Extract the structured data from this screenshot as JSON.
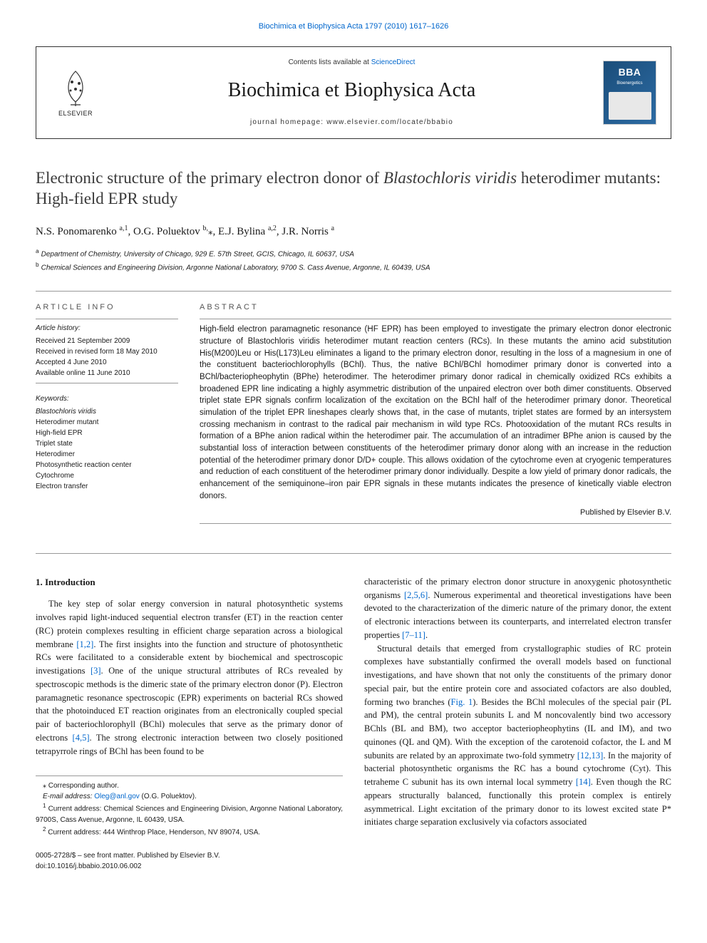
{
  "top_link": "Biochimica et Biophysica Acta 1797 (2010) 1617–1626",
  "header": {
    "elsevier_label": "ELSEVIER",
    "contents_prefix": "Contents lists available at ",
    "contents_link": "ScienceDirect",
    "journal_name": "Biochimica et Biophysica Acta",
    "homepage_label": "journal homepage: www.elsevier.com/locate/bbabio",
    "bba_badge": "BBA",
    "bba_sub": "Bioenergetics"
  },
  "title": {
    "line1": "Electronic structure of the primary electron donor of ",
    "species": "Blastochloris viridis",
    "line2": " heterodimer mutants: High-field EPR study"
  },
  "authors": [
    {
      "name": "N.S. Ponomarenko",
      "sup": "a,1"
    },
    {
      "name": "O.G. Poluektov",
      "sup": "b,",
      "corr": true
    },
    {
      "name": "E.J. Bylina",
      "sup": "a,2"
    },
    {
      "name": "J.R. Norris",
      "sup": "a"
    }
  ],
  "affiliations": [
    {
      "sup": "a",
      "text": "Department of Chemistry, University of Chicago, 929 E. 57th Street, GCIS, Chicago, IL 60637, USA"
    },
    {
      "sup": "b",
      "text": "Chemical Sciences and Engineering Division, Argonne National Laboratory, 9700 S. Cass Avenue, Argonne, IL 60439, USA"
    }
  ],
  "info": {
    "heading": "ARTICLE INFO",
    "history_label": "Article history:",
    "history": [
      "Received 21 September 2009",
      "Received in revised form 18 May 2010",
      "Accepted 4 June 2010",
      "Available online 11 June 2010"
    ],
    "keywords_label": "Keywords:",
    "keywords": [
      "Blastochloris viridis",
      "Heterodimer mutant",
      "High-field EPR",
      "Triplet state",
      "Heterodimer",
      "Photosynthetic reaction center",
      "Cytochrome",
      "Electron transfer"
    ]
  },
  "abstract": {
    "heading": "ABSTRACT",
    "text": "High-field electron paramagnetic resonance (HF EPR) has been employed to investigate the primary electron donor electronic structure of Blastochloris viridis heterodimer mutant reaction centers (RCs). In these mutants the amino acid substitution His(M200)Leu or His(L173)Leu eliminates a ligand to the primary electron donor, resulting in the loss of a magnesium in one of the constituent bacteriochlorophylls (BChl). Thus, the native BChl/BChl homodimer primary donor is converted into a BChl/bacteriopheophytin (BPhe) heterodimer. The heterodimer primary donor radical in chemically oxidized RCs exhibits a broadened EPR line indicating a highly asymmetric distribution of the unpaired electron over both dimer constituents. Observed triplet state EPR signals confirm localization of the excitation on the BChl half of the heterodimer primary donor. Theoretical simulation of the triplet EPR lineshapes clearly shows that, in the case of mutants, triplet states are formed by an intersystem crossing mechanism in contrast to the radical pair mechanism in wild type RCs. Photooxidation of the mutant RCs results in formation of a BPhe anion radical within the heterodimer pair. The accumulation of an intradimer BPhe anion is caused by the substantial loss of interaction between constituents of the heterodimer primary donor along with an increase in the reduction potential of the heterodimer primary donor D/D+ couple. This allows oxidation of the cytochrome even at cryogenic temperatures and reduction of each constituent of the heterodimer primary donor individually. Despite a low yield of primary donor radicals, the enhancement of the semiquinone–iron pair EPR signals in these mutants indicates the presence of kinetically viable electron donors.",
    "publisher": "Published by Elsevier B.V."
  },
  "body": {
    "section_heading": "1. Introduction",
    "col1_p1": "The key step of solar energy conversion in natural photosynthetic systems involves rapid light-induced sequential electron transfer (ET) in the reaction center (RC) protein complexes resulting in efficient charge separation across a biological membrane [1,2]. The first insights into the function and structure of photosynthetic RCs were facilitated to a considerable extent by biochemical and spectroscopic investigations [3]. One of the unique structural attributes of RCs revealed by spectroscopic methods is the dimeric state of the primary electron donor (P). Electron paramagnetic resonance spectroscopic (EPR) experiments on bacterial RCs showed that the photoinduced ET reaction originates from an electronically coupled special pair of bacteriochlorophyll (BChl) molecules that serve as the primary donor of electrons [4,5]. The strong electronic interaction between two closely positioned tetrapyrrole rings of BChl has been found to be",
    "col2_p1": "characteristic of the primary electron donor structure in anoxygenic photosynthetic organisms [2,5,6]. Numerous experimental and theoretical investigations have been devoted to the characterization of the dimeric nature of the primary donor, the extent of electronic interactions between its counterparts, and interrelated electron transfer properties [7–11].",
    "col2_p2": "Structural details that emerged from crystallographic studies of RC protein complexes have substantially confirmed the overall models based on functional investigations, and have shown that not only the constituents of the primary donor special pair, but the entire protein core and associated cofactors are also doubled, forming two branches (Fig. 1). Besides the BChl molecules of the special pair (PL and PM), the central protein subunits L and M noncovalently bind two accessory BChls (BL and BM), two acceptor bacteriopheophytins (IL and IM), and two quinones (QL and QM). With the exception of the carotenoid cofactor, the L and M subunits are related by an approximate two-fold symmetry [12,13]. In the majority of bacterial photosynthetic organisms the RC has a bound cytochrome (Cyt). This tetraheme C subunit has its own internal local symmetry [14]. Even though the RC appears structurally balanced, functionally this protein complex is entirely asymmetrical. Light excitation of the primary donor to its lowest excited state P* initiates charge separation exclusively via cofactors associated"
  },
  "footnotes": {
    "corr": "⁎ Corresponding author.",
    "email_label": "E-mail address: ",
    "email": "Oleg@anl.gov",
    "email_suffix": " (O.G. Poluektov).",
    "n1": "Current address: Chemical Sciences and Engineering Division, Argonne National Laboratory, 9700S, Cass Avenue, Argonne, IL 60439, USA.",
    "n2": "Current address: 444 Winthrop Place, Henderson, NV 89074, USA."
  },
  "bottom": {
    "issn": "0005-2728/$ – see front matter. Published by Elsevier B.V.",
    "doi": "doi:10.1016/j.bbabio.2010.06.002"
  },
  "colors": {
    "link": "#0066cc",
    "text": "#1a1a1a",
    "heading_gray": "#555555",
    "border": "#999999",
    "bba_bg": "#1a4d7a"
  }
}
